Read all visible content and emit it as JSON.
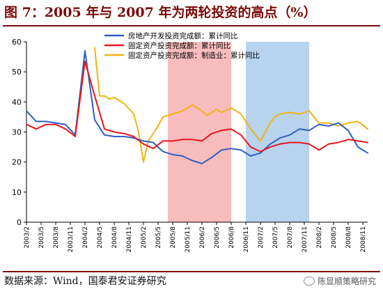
{
  "header": {
    "figure_title": "图 7：2005 年与 2007 年为两轮投资的高点（%）"
  },
  "footer": {
    "source": "数据来源：Wind，国泰君安证券研究",
    "watermark": "陈显顺策略研究",
    "watermark_icon": "chat-bubble-icon"
  },
  "colors": {
    "real_estate": "#2d5fc4",
    "fixed_asset": "#e8161b",
    "manufacturing": "#f2b312",
    "shade_2005": "#f9bcbc",
    "shade_2007": "#b7d3ee",
    "title": "#7a0a0a"
  },
  "chart_data": {
    "type": "line",
    "title": "",
    "xlabel": "",
    "ylabel": "",
    "ylim": [
      0,
      60
    ],
    "yticks": [
      0,
      10,
      20,
      30,
      40,
      50,
      60
    ],
    "x_start": "2003-02",
    "x_end": "2008-12",
    "xtick_labels": [
      "2003/2",
      "2003/5",
      "2003/8",
      "2003/11",
      "2004/2",
      "2004/5",
      "2004/8",
      "2004/11",
      "2005/2",
      "2005/5",
      "2005/8",
      "2005/11",
      "2006/2",
      "2006/5",
      "2006/8",
      "2006/11",
      "2007/2",
      "2007/5",
      "2007/8",
      "2007/11",
      "2008/2",
      "2008/5",
      "2008/8",
      "2008/11"
    ],
    "legend_position": "top",
    "grid": false,
    "shaded_periods": [
      {
        "from": "2005-07",
        "to": "2006-08",
        "color_key": "shade_2005"
      },
      {
        "from": "2006-11",
        "to": "2007-12",
        "color_key": "shade_2007"
      }
    ],
    "series": [
      {
        "name": "房地产开发投资完成额：累计同比",
        "color_key": "real_estate",
        "points": [
          [
            "2003-02",
            37
          ],
          [
            "2003-04",
            33.5
          ],
          [
            "2003-06",
            33.5
          ],
          [
            "2003-08",
            33
          ],
          [
            "2003-10",
            32.5
          ],
          [
            "2003-12",
            29
          ],
          [
            "2004-02",
            57
          ],
          [
            "2004-04",
            34
          ],
          [
            "2004-06",
            29
          ],
          [
            "2004-08",
            28.5
          ],
          [
            "2004-10",
            28.5
          ],
          [
            "2004-12",
            28
          ],
          [
            "2005-02",
            27
          ],
          [
            "2005-04",
            26.5
          ],
          [
            "2005-06",
            23.5
          ],
          [
            "2005-08",
            22.5
          ],
          [
            "2005-10",
            22
          ],
          [
            "2005-12",
            20.5
          ],
          [
            "2006-02",
            19.5
          ],
          [
            "2006-04",
            21.5
          ],
          [
            "2006-06",
            24
          ],
          [
            "2006-08",
            24.5
          ],
          [
            "2006-10",
            24
          ],
          [
            "2006-12",
            22
          ],
          [
            "2007-02",
            23
          ],
          [
            "2007-04",
            26
          ],
          [
            "2007-06",
            28
          ],
          [
            "2007-08",
            29
          ],
          [
            "2007-10",
            31
          ],
          [
            "2007-12",
            30.5
          ],
          [
            "2008-02",
            32.5
          ],
          [
            "2008-04",
            32
          ],
          [
            "2008-06",
            33
          ],
          [
            "2008-08",
            30.5
          ],
          [
            "2008-10",
            25
          ],
          [
            "2008-12",
            23
          ]
        ]
      },
      {
        "name": "固定资产投资完成额：累计同比",
        "color_key": "fixed_asset",
        "points": [
          [
            "2003-02",
            32.5
          ],
          [
            "2003-04",
            31
          ],
          [
            "2003-06",
            32.5
          ],
          [
            "2003-08",
            32.5
          ],
          [
            "2003-10",
            31
          ],
          [
            "2003-12",
            28.5
          ],
          [
            "2004-02",
            53.5
          ],
          [
            "2004-04",
            42
          ],
          [
            "2004-06",
            31
          ],
          [
            "2004-08",
            30
          ],
          [
            "2004-10",
            29.5
          ],
          [
            "2004-12",
            28.5
          ],
          [
            "2005-02",
            26
          ],
          [
            "2005-04",
            24.5
          ],
          [
            "2005-06",
            27
          ],
          [
            "2005-08",
            27
          ],
          [
            "2005-10",
            27.5
          ],
          [
            "2005-12",
            27.5
          ],
          [
            "2006-02",
            27
          ],
          [
            "2006-04",
            29.5
          ],
          [
            "2006-06",
            30.5
          ],
          [
            "2006-08",
            31
          ],
          [
            "2006-10",
            29
          ],
          [
            "2006-12",
            25
          ],
          [
            "2007-02",
            23.5
          ],
          [
            "2007-04",
            25
          ],
          [
            "2007-06",
            26
          ],
          [
            "2007-08",
            26.5
          ],
          [
            "2007-10",
            26.5
          ],
          [
            "2007-12",
            26
          ],
          [
            "2008-02",
            24
          ],
          [
            "2008-04",
            26
          ],
          [
            "2008-06",
            26.5
          ],
          [
            "2008-08",
            27.5
          ],
          [
            "2008-10",
            27
          ],
          [
            "2008-12",
            26.5
          ]
        ]
      },
      {
        "name": "固定资产投资完成额：制造业：累计同比",
        "color_key": "manufacturing",
        "points": [
          [
            "2004-04",
            58
          ],
          [
            "2004-05",
            42
          ],
          [
            "2004-06",
            42
          ],
          [
            "2004-07",
            41
          ],
          [
            "2004-08",
            41.5
          ],
          [
            "2004-10",
            39.5
          ],
          [
            "2004-12",
            36
          ],
          [
            "2005-01",
            30
          ],
          [
            "2005-02",
            20
          ],
          [
            "2005-03",
            27
          ],
          [
            "2005-05",
            32
          ],
          [
            "2005-06",
            35
          ],
          [
            "2005-08",
            36
          ],
          [
            "2005-10",
            37
          ],
          [
            "2005-12",
            39
          ],
          [
            "2006-02",
            37
          ],
          [
            "2006-03",
            35.5
          ],
          [
            "2006-05",
            37.5
          ],
          [
            "2006-06",
            36.5
          ],
          [
            "2006-08",
            38
          ],
          [
            "2006-10",
            36
          ],
          [
            "2006-12",
            31
          ],
          [
            "2007-02",
            27
          ],
          [
            "2007-03",
            30
          ],
          [
            "2007-04",
            33
          ],
          [
            "2007-05",
            35
          ],
          [
            "2007-06",
            36
          ],
          [
            "2007-08",
            36.5
          ],
          [
            "2007-10",
            36
          ],
          [
            "2007-12",
            37
          ],
          [
            "2008-02",
            33
          ],
          [
            "2008-04",
            33
          ],
          [
            "2008-06",
            32
          ],
          [
            "2008-08",
            33
          ],
          [
            "2008-10",
            33.5
          ],
          [
            "2008-12",
            31
          ]
        ]
      }
    ]
  }
}
